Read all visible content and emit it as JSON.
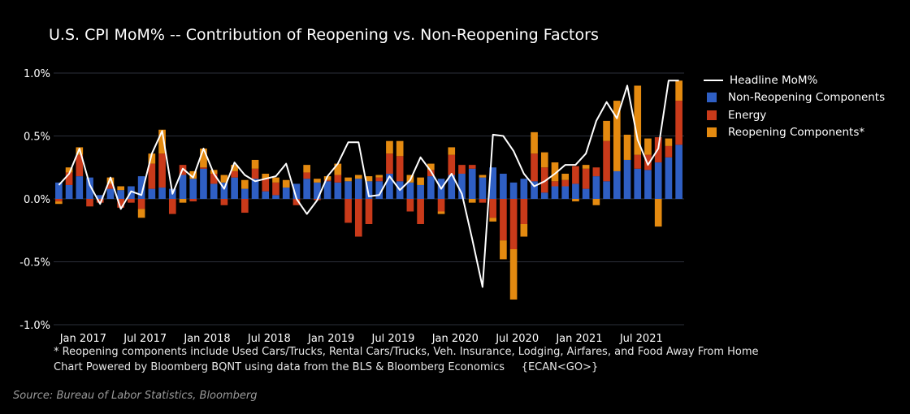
{
  "chart_data": {
    "type": "bar",
    "stacked": true,
    "title": "U.S. CPI MoM% -- Contribution of Reopening vs. Non-Reopening Factors",
    "ylim": [
      -1.0,
      1.0
    ],
    "ytick_values": [
      1.0,
      0.5,
      0.0,
      -0.5,
      -1.0
    ],
    "ytick_labels": [
      "1.0%",
      "0.5%",
      "0.0%",
      "-0.5%",
      "-1.0%"
    ],
    "grid": true,
    "legend_position": "right",
    "x_label_positions": [
      0,
      6,
      12,
      18,
      24,
      30,
      36,
      42,
      48,
      54
    ],
    "x_labels": [
      "Jan 2017",
      "Jul 2017",
      "Jan 2018",
      "Jul 2018",
      "Jan 2019",
      "Jul 2019",
      "Jan 2020",
      "Jul 2020",
      "Jan 2021",
      "Jul 2021"
    ],
    "series": [
      {
        "name": "Non-Reopening Components",
        "color": "#2f5fc4",
        "values": [
          0.13,
          0.11,
          0.18,
          0.17,
          0.03,
          0.08,
          0.07,
          0.1,
          0.18,
          0.08,
          0.09,
          0.08,
          0.19,
          0.16,
          0.24,
          0.12,
          0.13,
          0.17,
          0.08,
          0.16,
          0.06,
          0.03,
          0.09,
          0.12,
          0.16,
          0.13,
          0.14,
          0.13,
          0.14,
          0.16,
          0.14,
          0.14,
          0.2,
          0.14,
          0.13,
          0.11,
          0.18,
          0.16,
          0.19,
          0.2,
          0.24,
          0.17,
          0.25,
          0.2,
          0.13,
          0.16,
          0.14,
          0.05,
          0.1,
          0.1,
          0.12,
          0.08,
          0.18,
          0.14,
          0.22,
          0.31,
          0.24,
          0.23,
          0.29,
          0.33,
          0.43
        ]
      },
      {
        "name": "Energy",
        "color": "#c93a1a",
        "values": [
          -0.02,
          0.1,
          0.17,
          -0.06,
          -0.03,
          0.04,
          -0.07,
          -0.03,
          -0.08,
          0.2,
          0.27,
          -0.12,
          0.08,
          -0.02,
          0.01,
          0.08,
          -0.05,
          0.05,
          -0.11,
          0.08,
          0.1,
          0.1,
          0.0,
          -0.05,
          0.05,
          -0.01,
          0.01,
          0.06,
          -0.19,
          -0.3,
          -0.2,
          0.03,
          0.16,
          0.2,
          -0.1,
          -0.2,
          0.05,
          -0.1,
          0.16,
          0.07,
          0.03,
          -0.03,
          -0.15,
          -0.33,
          -0.4,
          -0.2,
          0.22,
          0.2,
          0.04,
          0.05,
          0.14,
          0.16,
          0.07,
          0.32,
          0.0,
          0.0,
          0.11,
          0.12,
          0.2,
          0.09,
          0.35
        ]
      },
      {
        "name": "Reopening Components",
        "color": "#e48a10",
        "values": [
          -0.02,
          0.04,
          0.06,
          0.0,
          0.0,
          0.05,
          0.03,
          0.0,
          -0.07,
          0.08,
          0.19,
          0.0,
          -0.03,
          0.06,
          0.15,
          0.03,
          0.06,
          0.05,
          0.07,
          0.07,
          0.04,
          0.04,
          0.06,
          0.0,
          0.06,
          0.03,
          0.03,
          0.09,
          0.03,
          0.03,
          0.04,
          0.02,
          0.1,
          0.12,
          0.06,
          0.06,
          0.05,
          -0.02,
          0.06,
          0.0,
          -0.03,
          0.02,
          -0.03,
          -0.15,
          -0.4,
          -0.1,
          0.17,
          0.12,
          0.15,
          0.05,
          -0.02,
          0.03,
          -0.05,
          0.16,
          0.56,
          0.2,
          0.55,
          0.13,
          -0.22,
          0.06,
          0.16
        ]
      }
    ],
    "line": {
      "name": "Headline MoM%",
      "color": "#ffffff",
      "values": [
        0.11,
        0.2,
        0.4,
        0.11,
        -0.04,
        0.17,
        -0.08,
        0.06,
        0.03,
        0.36,
        0.54,
        0.04,
        0.24,
        0.17,
        0.4,
        0.2,
        0.08,
        0.29,
        0.19,
        0.14,
        0.16,
        0.18,
        0.28,
        0.0,
        -0.12,
        -0.01,
        0.18,
        0.28,
        0.45,
        0.45,
        0.02,
        0.03,
        0.18,
        0.07,
        0.15,
        0.33,
        0.22,
        0.08,
        0.2,
        0.04,
        -0.32,
        -0.7,
        0.51,
        0.5,
        0.38,
        0.2,
        0.1,
        0.14,
        0.2,
        0.27,
        0.27,
        0.36,
        0.62,
        0.77,
        0.64,
        0.9,
        0.47,
        0.27,
        0.4,
        0.94,
        0.94
      ]
    },
    "legend": [
      "Headline MoM%",
      "Non-Reopening Components",
      "Energy",
      "Reopening Components*"
    ]
  },
  "footnotes": [
    "* Reopening components include Used Cars/Trucks, Rental Cars/Trucks, Veh. Insurance, Lodging, Airfares, and Food Away From Home",
    "Chart Powered by Bloomberg BQNT using data from the BLS & Bloomberg Economics     {ECAN<GO>}"
  ],
  "source": "Source: Bureau of Labor Statistics, Bloomberg",
  "colors": {
    "background": "#000000",
    "grid": "#2c2f3a",
    "text": "#ffffff"
  }
}
